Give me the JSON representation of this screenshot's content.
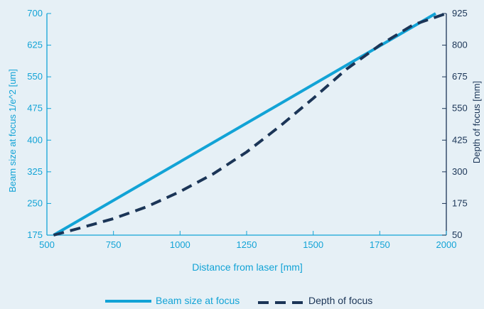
{
  "chart_data": {
    "type": "line",
    "title": "",
    "xlabel": "Distance from laser [mm]",
    "ylabel": "Beam size at focus 1/e^2 [um]",
    "y2label": "Depth of focus [mm]",
    "xlim": [
      500,
      2000
    ],
    "ylim": [
      175,
      700
    ],
    "y2lim": [
      50,
      925
    ],
    "xticks": [
      500,
      750,
      1000,
      1250,
      1500,
      1750,
      2000
    ],
    "yticks": [
      175,
      250,
      325,
      400,
      475,
      550,
      625,
      700
    ],
    "y2ticks": [
      50,
      175,
      300,
      425,
      550,
      675,
      800,
      925
    ],
    "grid": false,
    "legend_position": "bottom-center",
    "colors": {
      "beam": "#12a3d6",
      "depth": "#1b3557",
      "axis": "#12a3d6",
      "depth_axis": "#1b3557"
    },
    "series": [
      {
        "name": "Beam size at focus",
        "axis": "left",
        "style": "solid",
        "x": [
          525,
          1960
        ],
        "y": [
          175,
          700
        ]
      },
      {
        "name": "Depth of focus",
        "axis": "right",
        "style": "dashed",
        "x": [
          525,
          625,
          750,
          875,
          1000,
          1125,
          1250,
          1375,
          1500,
          1625,
          1750,
          1875,
          2000
        ],
        "y": [
          50,
          78,
          115,
          162,
          222,
          292,
          378,
          480,
          590,
          705,
          800,
          880,
          925
        ]
      }
    ]
  }
}
